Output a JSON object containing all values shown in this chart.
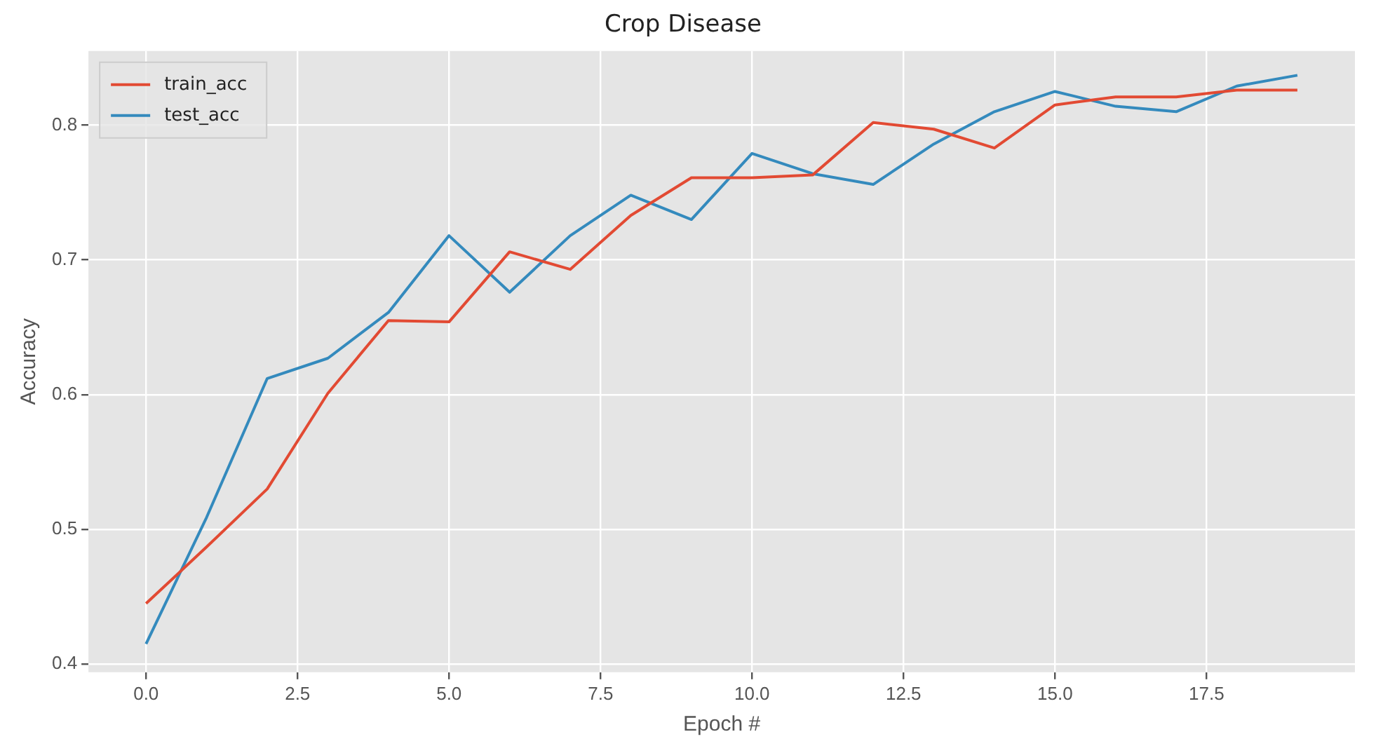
{
  "chart_data": {
    "type": "line",
    "title": "Crop Disease",
    "xlabel": "Epoch #",
    "ylabel": "Accuracy",
    "x": [
      0,
      1,
      2,
      3,
      4,
      5,
      6,
      7,
      8,
      9,
      10,
      11,
      12,
      13,
      14,
      15,
      16,
      17,
      18,
      19
    ],
    "series": [
      {
        "name": "train_acc",
        "color": "#e24a33",
        "values": [
          0.445,
          0.487,
          0.53,
          0.601,
          0.655,
          0.654,
          0.706,
          0.693,
          0.733,
          0.761,
          0.761,
          0.763,
          0.802,
          0.797,
          0.783,
          0.815,
          0.821,
          0.821,
          0.826,
          0.826
        ]
      },
      {
        "name": "test_acc",
        "color": "#348abd",
        "values": [
          0.415,
          0.509,
          0.612,
          0.627,
          0.661,
          0.718,
          0.676,
          0.718,
          0.748,
          0.73,
          0.779,
          0.764,
          0.756,
          0.786,
          0.81,
          0.825,
          0.814,
          0.81,
          0.829,
          0.837
        ]
      }
    ],
    "xlim": [
      -0.95,
      19.95
    ],
    "ylim": [
      0.394,
      0.855
    ],
    "xticks": [
      {
        "value": 0,
        "label": "0.0"
      },
      {
        "value": 2.5,
        "label": "2.5"
      },
      {
        "value": 5,
        "label": "5.0"
      },
      {
        "value": 7.5,
        "label": "7.5"
      },
      {
        "value": 10,
        "label": "10.0"
      },
      {
        "value": 12.5,
        "label": "12.5"
      },
      {
        "value": 15,
        "label": "15.0"
      },
      {
        "value": 17.5,
        "label": "17.5"
      }
    ],
    "yticks": [
      0.4,
      0.5,
      0.6,
      0.7,
      0.8
    ],
    "grid": true,
    "legend": "top left",
    "marker": "none",
    "line_style": "solid"
  }
}
